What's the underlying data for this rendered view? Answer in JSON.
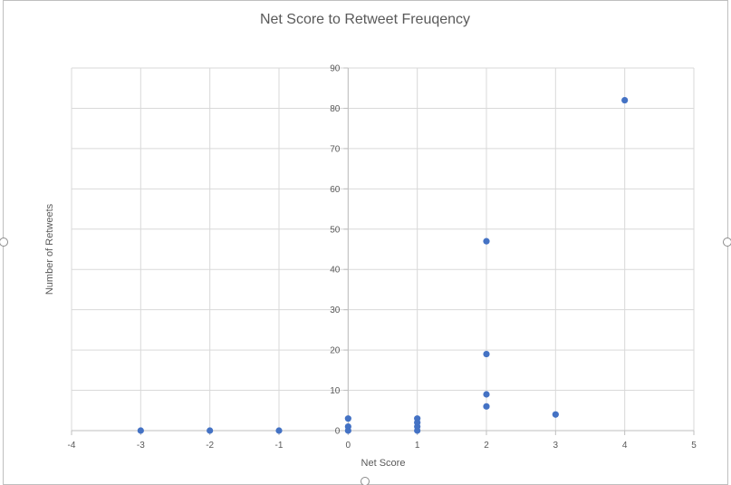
{
  "chart_data": {
    "type": "scatter",
    "title": "Net Score to Retweet Freuqency",
    "xlabel": "Net Score",
    "ylabel": "Number of Retweets",
    "xlim": [
      -4,
      5
    ],
    "ylim": [
      0,
      90
    ],
    "x_ticks": [
      -4,
      -3,
      -2,
      -1,
      0,
      1,
      2,
      3,
      4,
      5
    ],
    "y_ticks": [
      0,
      10,
      20,
      30,
      40,
      50,
      60,
      70,
      80,
      90
    ],
    "grid": true,
    "legend": "none",
    "series": [
      {
        "color": "#4472C4",
        "points": [
          {
            "x": -3,
            "y": 0
          },
          {
            "x": -2,
            "y": 0
          },
          {
            "x": -1,
            "y": 0
          },
          {
            "x": 0,
            "y": 0
          },
          {
            "x": 0,
            "y": 1
          },
          {
            "x": 0,
            "y": 3
          },
          {
            "x": 1,
            "y": 0
          },
          {
            "x": 1,
            "y": 1
          },
          {
            "x": 1,
            "y": 2
          },
          {
            "x": 1,
            "y": 3
          },
          {
            "x": 2,
            "y": 6
          },
          {
            "x": 2,
            "y": 9
          },
          {
            "x": 2,
            "y": 19
          },
          {
            "x": 2,
            "y": 47
          },
          {
            "x": 3,
            "y": 4
          },
          {
            "x": 4,
            "y": 82
          }
        ]
      }
    ]
  },
  "colors": {
    "marker": "#4472C4",
    "gridline": "#d9d9d9",
    "axis_text": "#595959",
    "border": "#bfbfbf"
  }
}
